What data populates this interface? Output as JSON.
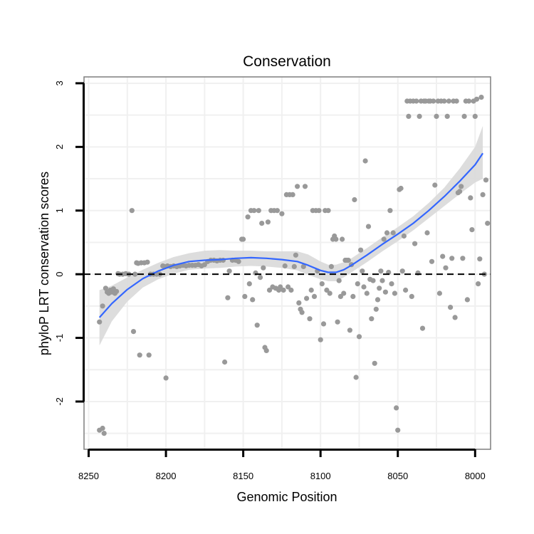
{
  "chart_data": {
    "type": "scatter",
    "title": "Conservation",
    "xlabel": "Genomic Position",
    "ylabel": "phyloP LRT conservation scores",
    "x_reversed": true,
    "xlim": [
      8253,
      7990
    ],
    "ylim": [
      -2.75,
      3.1
    ],
    "x_ticks": [
      8250,
      8200,
      8150,
      8100,
      8050,
      8000
    ],
    "x_tick_labels": [
      "8250",
      "8200",
      "8150",
      "8100",
      "8050",
      "8000"
    ],
    "y_ticks": [
      -2,
      -1,
      0,
      1,
      2,
      3
    ],
    "y_tick_labels": [
      "-2",
      "-1",
      "0",
      "1",
      "2",
      "3"
    ],
    "grid": true,
    "reference_line": {
      "y": 0,
      "style": "dashed"
    },
    "colors": {
      "points": "#999999",
      "smooth": "#3366ff",
      "ribbon": "#d9d9d9",
      "grid": "#f0f0f0",
      "panel_border": "#7f7f7f"
    },
    "points": [
      [
        8243,
        -0.75
      ],
      [
        8243,
        -2.45
      ],
      [
        8241,
        -2.42
      ],
      [
        8240,
        -2.5
      ],
      [
        8241,
        -0.5
      ],
      [
        8239,
        -0.22
      ],
      [
        8238,
        -0.28
      ],
      [
        8237,
        -0.3
      ],
      [
        8236,
        -0.25
      ],
      [
        8235,
        -0.28
      ],
      [
        8234,
        -0.23
      ],
      [
        8233,
        -0.3
      ],
      [
        8232,
        -0.27
      ],
      [
        8231,
        0.01
      ],
      [
        8230,
        0.0
      ],
      [
        8228,
        0.0
      ],
      [
        8226,
        0.01
      ],
      [
        8224,
        0.0
      ],
      [
        8222,
        1.0
      ],
      [
        8221,
        -0.9
      ],
      [
        8220,
        0.0
      ],
      [
        8219,
        0.18
      ],
      [
        8218,
        0.17
      ],
      [
        8217,
        -1.27
      ],
      [
        8216,
        0.18
      ],
      [
        8214,
        0.18
      ],
      [
        8212,
        0.19
      ],
      [
        8211,
        -1.27
      ],
      [
        8210,
        0.0
      ],
      [
        8208,
        0.0
      ],
      [
        8206,
        0.0
      ],
      [
        8204,
        0.0
      ],
      [
        8202,
        0.13
      ],
      [
        8201,
        0.12
      ],
      [
        8200,
        -1.63
      ],
      [
        8199,
        0.13
      ],
      [
        8197,
        0.12
      ],
      [
        8195,
        0.13
      ],
      [
        8193,
        0.12
      ],
      [
        8191,
        0.13
      ],
      [
        8189,
        0.14
      ],
      [
        8187,
        0.13
      ],
      [
        8185,
        0.14
      ],
      [
        8183,
        0.14
      ],
      [
        8181,
        0.14
      ],
      [
        8179,
        0.15
      ],
      [
        8177,
        0.13
      ],
      [
        8175,
        0.15
      ],
      [
        8173,
        0.2
      ],
      [
        8171,
        0.22
      ],
      [
        8169,
        0.22
      ],
      [
        8167,
        0.21
      ],
      [
        8165,
        0.22
      ],
      [
        8163,
        0.22
      ],
      [
        8162,
        -1.38
      ],
      [
        8160,
        -0.37
      ],
      [
        8159,
        0.05
      ],
      [
        8157,
        0.22
      ],
      [
        8155,
        0.22
      ],
      [
        8153,
        0.2
      ],
      [
        8151,
        0.55
      ],
      [
        8150,
        0.55
      ],
      [
        8149,
        -0.35
      ],
      [
        8147,
        0.9
      ],
      [
        8146,
        -0.15
      ],
      [
        8145,
        1.0
      ],
      [
        8144,
        -0.4
      ],
      [
        8143,
        1.0
      ],
      [
        8142,
        0.02
      ],
      [
        8141,
        -0.8
      ],
      [
        8140,
        1.0
      ],
      [
        8139,
        -0.05
      ],
      [
        8138,
        0.8
      ],
      [
        8137,
        0.1
      ],
      [
        8136,
        -1.15
      ],
      [
        8135,
        -1.2
      ],
      [
        8134,
        0.82
      ],
      [
        8133,
        -0.25
      ],
      [
        8132,
        1.0
      ],
      [
        8131,
        -0.2
      ],
      [
        8130,
        1.0
      ],
      [
        8129,
        -0.22
      ],
      [
        8128,
        1.0
      ],
      [
        8127,
        -0.25
      ],
      [
        8126,
        -0.2
      ],
      [
        8125,
        0.95
      ],
      [
        8124,
        -0.25
      ],
      [
        8123,
        0.13
      ],
      [
        8122,
        1.25
      ],
      [
        8121,
        -0.2
      ],
      [
        8120,
        1.25
      ],
      [
        8119,
        -0.25
      ],
      [
        8118,
        1.25
      ],
      [
        8117,
        0.12
      ],
      [
        8116,
        0.3
      ],
      [
        8115,
        1.38
      ],
      [
        8114,
        -0.45
      ],
      [
        8113,
        -0.55
      ],
      [
        8112,
        -0.6
      ],
      [
        8111,
        0.12
      ],
      [
        8110,
        1.38
      ],
      [
        8109,
        -0.38
      ],
      [
        8107,
        -0.7
      ],
      [
        8106,
        -0.25
      ],
      [
        8105,
        1.0
      ],
      [
        8104,
        -0.35
      ],
      [
        8103,
        1.0
      ],
      [
        8102,
        0.05
      ],
      [
        8101,
        1.0
      ],
      [
        8100,
        -1.03
      ],
      [
        8099,
        -0.15
      ],
      [
        8098,
        -0.78
      ],
      [
        8097,
        1.0
      ],
      [
        8096,
        -0.25
      ],
      [
        8095,
        1.0
      ],
      [
        8094,
        -0.3
      ],
      [
        8093,
        0.12
      ],
      [
        8092,
        0.55
      ],
      [
        8091,
        0.6
      ],
      [
        8090,
        0.55
      ],
      [
        8089,
        -0.75
      ],
      [
        8088,
        -0.1
      ],
      [
        8087,
        -0.35
      ],
      [
        8086,
        0.55
      ],
      [
        8085,
        -0.3
      ],
      [
        8084,
        0.22
      ],
      [
        8083,
        0.22
      ],
      [
        8082,
        0.22
      ],
      [
        8081,
        -0.88
      ],
      [
        8080,
        0.15
      ],
      [
        8079,
        -0.35
      ],
      [
        8078,
        1.17
      ],
      [
        8077,
        -1.62
      ],
      [
        8076,
        -0.15
      ],
      [
        8075,
        -0.98
      ],
      [
        8074,
        0.38
      ],
      [
        8073,
        0.05
      ],
      [
        8072,
        -0.2
      ],
      [
        8071,
        1.78
      ],
      [
        8070,
        -0.3
      ],
      [
        8069,
        0.75
      ],
      [
        8068,
        -0.08
      ],
      [
        8067,
        -0.7
      ],
      [
        8066,
        -0.1
      ],
      [
        8065,
        -1.4
      ],
      [
        8064,
        -0.55
      ],
      [
        8063,
        -0.4
      ],
      [
        8062,
        -0.22
      ],
      [
        8061,
        0.05
      ],
      [
        8060,
        -0.1
      ],
      [
        8059,
        0.55
      ],
      [
        8058,
        -0.28
      ],
      [
        8057,
        0.65
      ],
      [
        8056,
        0.03
      ],
      [
        8055,
        1.0
      ],
      [
        8054,
        -0.15
      ],
      [
        8053,
        0.65
      ],
      [
        8052,
        -0.3
      ],
      [
        8051,
        -2.1
      ],
      [
        8050,
        -2.45
      ],
      [
        8049,
        1.33
      ],
      [
        8048,
        1.35
      ],
      [
        8047,
        0.05
      ],
      [
        8046,
        0.6
      ],
      [
        8045,
        -0.25
      ],
      [
        8044,
        2.72
      ],
      [
        8043,
        2.48
      ],
      [
        8042,
        2.72
      ],
      [
        8041,
        -0.35
      ],
      [
        8040,
        2.72
      ],
      [
        8039,
        0.48
      ],
      [
        8038,
        2.72
      ],
      [
        8037,
        0.02
      ],
      [
        8036,
        2.48
      ],
      [
        8035,
        2.72
      ],
      [
        8034,
        -0.85
      ],
      [
        8033,
        2.72
      ],
      [
        8032,
        2.72
      ],
      [
        8031,
        0.65
      ],
      [
        8030,
        2.72
      ],
      [
        8029,
        2.72
      ],
      [
        8028,
        0.2
      ],
      [
        8027,
        2.72
      ],
      [
        8026,
        1.4
      ],
      [
        8025,
        2.48
      ],
      [
        8024,
        2.72
      ],
      [
        8023,
        -0.3
      ],
      [
        8022,
        2.72
      ],
      [
        8021,
        0.28
      ],
      [
        8020,
        2.72
      ],
      [
        8019,
        0.1
      ],
      [
        8018,
        2.48
      ],
      [
        8017,
        2.72
      ],
      [
        8016,
        -0.52
      ],
      [
        8015,
        0.25
      ],
      [
        8014,
        2.72
      ],
      [
        8013,
        -0.68
      ],
      [
        8012,
        2.72
      ],
      [
        8011,
        1.28
      ],
      [
        8010,
        1.3
      ],
      [
        8009,
        1.38
      ],
      [
        8008,
        0.25
      ],
      [
        8007,
        2.48
      ],
      [
        8006,
        2.72
      ],
      [
        8005,
        -0.4
      ],
      [
        8004,
        2.72
      ],
      [
        8003,
        1.2
      ],
      [
        8002,
        0.7
      ],
      [
        8001,
        2.72
      ],
      [
        8000,
        2.48
      ],
      [
        7999,
        2.75
      ],
      [
        7998,
        -0.15
      ],
      [
        7997,
        0.24
      ],
      [
        7996,
        2.78
      ],
      [
        7995,
        1.25
      ],
      [
        7994,
        0.0
      ],
      [
        7993,
        1.48
      ],
      [
        7992,
        0.8
      ]
    ],
    "smooth": [
      [
        8243,
        -0.68
      ],
      [
        8235,
        -0.46
      ],
      [
        8225,
        -0.24
      ],
      [
        8215,
        -0.07
      ],
      [
        8205,
        0.05
      ],
      [
        8195,
        0.14
      ],
      [
        8185,
        0.2
      ],
      [
        8175,
        0.22
      ],
      [
        8165,
        0.23
      ],
      [
        8155,
        0.25
      ],
      [
        8145,
        0.26
      ],
      [
        8135,
        0.25
      ],
      [
        8125,
        0.23
      ],
      [
        8115,
        0.2
      ],
      [
        8108,
        0.14
      ],
      [
        8100,
        0.06
      ],
      [
        8095,
        0.03
      ],
      [
        8090,
        0.03
      ],
      [
        8085,
        0.07
      ],
      [
        8080,
        0.14
      ],
      [
        8070,
        0.3
      ],
      [
        8060,
        0.47
      ],
      [
        8050,
        0.63
      ],
      [
        8040,
        0.8
      ],
      [
        8030,
        1.0
      ],
      [
        8020,
        1.22
      ],
      [
        8010,
        1.46
      ],
      [
        8000,
        1.72
      ],
      [
        7995,
        1.9
      ]
    ],
    "ribbon_upper": [
      [
        8243,
        -0.25
      ],
      [
        8235,
        -0.18
      ],
      [
        8225,
        -0.05
      ],
      [
        8215,
        0.07
      ],
      [
        8205,
        0.18
      ],
      [
        8195,
        0.27
      ],
      [
        8185,
        0.33
      ],
      [
        8175,
        0.37
      ],
      [
        8165,
        0.38
      ],
      [
        8155,
        0.37
      ],
      [
        8145,
        0.37
      ],
      [
        8135,
        0.36
      ],
      [
        8125,
        0.36
      ],
      [
        8115,
        0.36
      ],
      [
        8108,
        0.31
      ],
      [
        8100,
        0.2
      ],
      [
        8095,
        0.15
      ],
      [
        8090,
        0.15
      ],
      [
        8085,
        0.19
      ],
      [
        8080,
        0.25
      ],
      [
        8070,
        0.41
      ],
      [
        8060,
        0.58
      ],
      [
        8050,
        0.74
      ],
      [
        8040,
        0.91
      ],
      [
        8030,
        1.12
      ],
      [
        8020,
        1.36
      ],
      [
        8010,
        1.66
      ],
      [
        8000,
        2.0
      ],
      [
        7995,
        2.33
      ]
    ],
    "ribbon_lower": [
      [
        8243,
        -1.12
      ],
      [
        8235,
        -0.74
      ],
      [
        8225,
        -0.43
      ],
      [
        8215,
        -0.21
      ],
      [
        8205,
        -0.08
      ],
      [
        8195,
        0.01
      ],
      [
        8185,
        0.07
      ],
      [
        8175,
        0.09
      ],
      [
        8165,
        0.1
      ],
      [
        8155,
        0.12
      ],
      [
        8145,
        0.13
      ],
      [
        8135,
        0.12
      ],
      [
        8125,
        0.1
      ],
      [
        8115,
        0.06
      ],
      [
        8108,
        -0.01
      ],
      [
        8100,
        -0.08
      ],
      [
        8095,
        -0.11
      ],
      [
        8090,
        -0.11
      ],
      [
        8085,
        -0.05
      ],
      [
        8080,
        0.03
      ],
      [
        8070,
        0.19
      ],
      [
        8060,
        0.36
      ],
      [
        8050,
        0.52
      ],
      [
        8040,
        0.69
      ],
      [
        8030,
        0.88
      ],
      [
        8020,
        1.07
      ],
      [
        8010,
        1.26
      ],
      [
        8000,
        1.44
      ],
      [
        7995,
        1.5
      ]
    ]
  }
}
